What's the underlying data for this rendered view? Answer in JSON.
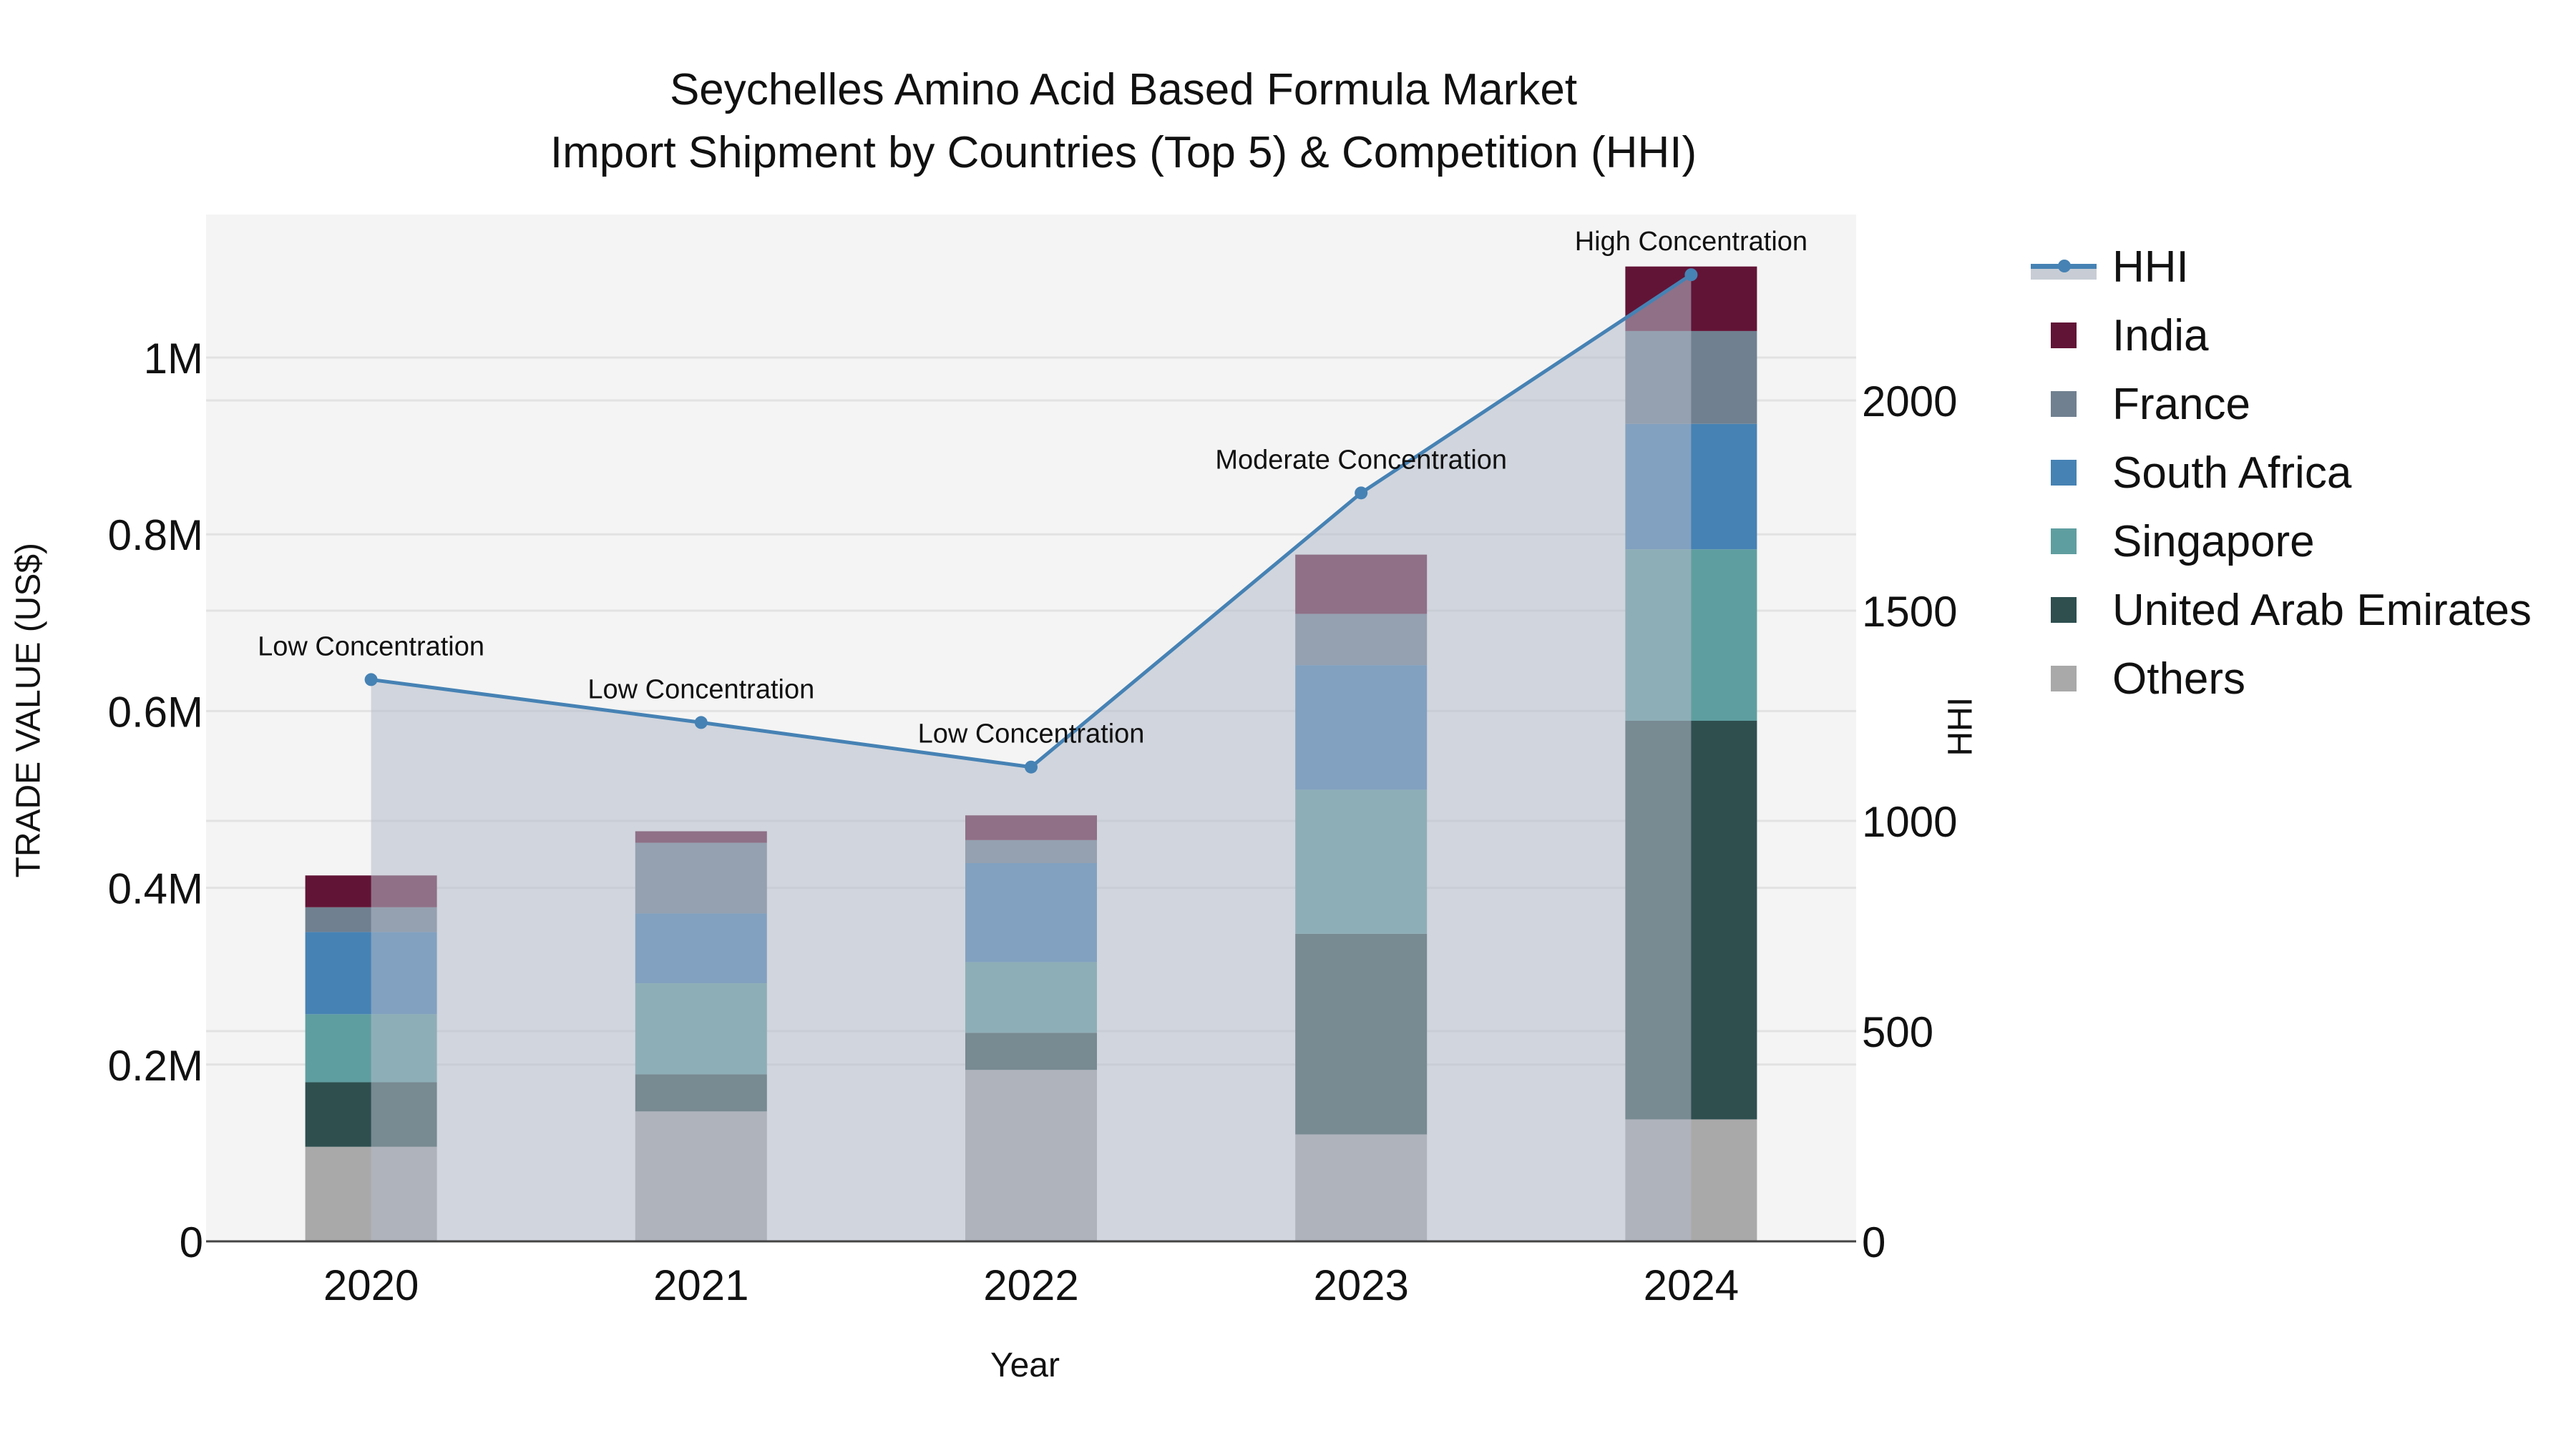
{
  "title": {
    "line1": "Seychelles Amino Acid Based Formula Market",
    "line2": "Import Shipment by Countries (Top 5) & Competition (HHI)"
  },
  "axes": {
    "x_title": "Year",
    "y_left_title": "TRADE VALUE (US$)",
    "y_right_title": "HHI"
  },
  "legend": {
    "items": [
      {
        "label": "HHI",
        "type": "line",
        "color": "#4682b4"
      },
      {
        "label": "India",
        "type": "bar",
        "color": "#621436"
      },
      {
        "label": "France",
        "type": "bar",
        "color": "#708090"
      },
      {
        "label": "South Africa",
        "type": "bar",
        "color": "#4682b4"
      },
      {
        "label": "Singapore",
        "type": "bar",
        "color": "#5f9ea0"
      },
      {
        "label": "United Arab Emirates",
        "type": "bar",
        "color": "#2f4f4f"
      },
      {
        "label": "Others",
        "type": "bar",
        "color": "#a9a9a9"
      }
    ]
  },
  "colors": {
    "plot_bg": "#f4f4f4",
    "hhi_fill": "#c8cdd5",
    "hhi_line": "#4682b4",
    "grid": "#e2e2e2"
  },
  "chart_data": {
    "type": "bar",
    "subtype": "stacked bar with line overlay (secondary axis)",
    "title": "Seychelles Amino Acid Based Formula Market — Import Shipment by Countries (Top 5) & Competition (HHI)",
    "xlabel": "Year",
    "ylabel": "TRADE VALUE (US$)",
    "y2label": "HHI",
    "categories": [
      "2020",
      "2021",
      "2022",
      "2023",
      "2024"
    ],
    "ylim": [
      0,
      1110000
    ],
    "y2lim": [
      0,
      2320
    ],
    "y_ticks": [
      {
        "value": 0,
        "label": "0"
      },
      {
        "value": 200000,
        "label": "0.2M"
      },
      {
        "value": 400000,
        "label": "0.4M"
      },
      {
        "value": 600000,
        "label": "0.6M"
      },
      {
        "value": 800000,
        "label": "0.8M"
      },
      {
        "value": 1000000,
        "label": "1M"
      }
    ],
    "y2_ticks": [
      {
        "value": 0,
        "label": "0"
      },
      {
        "value": 500,
        "label": "500"
      },
      {
        "value": 1000,
        "label": "1000"
      },
      {
        "value": 1500,
        "label": "1500"
      },
      {
        "value": 2000,
        "label": "2000"
      }
    ],
    "grid": true,
    "legend_position": "right",
    "series": [
      {
        "name": "Others",
        "color": "#a9a9a9",
        "values": [
          107000,
          147000,
          194000,
          121000,
          138000
        ]
      },
      {
        "name": "United Arab Emirates",
        "color": "#2f4f4f",
        "values": [
          73000,
          42000,
          42000,
          227000,
          451000
        ]
      },
      {
        "name": "Singapore",
        "color": "#5f9ea0",
        "values": [
          77000,
          103000,
          80000,
          163000,
          194000
        ]
      },
      {
        "name": "South Africa",
        "color": "#4682b4",
        "values": [
          93000,
          79000,
          112000,
          141000,
          142000
        ]
      },
      {
        "name": "France",
        "color": "#708090",
        "values": [
          28000,
          80000,
          26000,
          58000,
          105000
        ]
      },
      {
        "name": "India",
        "color": "#621436",
        "values": [
          36000,
          13000,
          28000,
          67000,
          73000
        ]
      }
    ],
    "line_series": {
      "name": "HHI",
      "axis": "right",
      "color": "#4682b4",
      "fill": "tozeroy",
      "values": [
        1336,
        1234,
        1128,
        1780,
        2299
      ],
      "annotations": [
        "Low Concentration",
        "Low Concentration",
        "Low Concentration",
        "Moderate Concentration",
        "High Concentration"
      ]
    }
  }
}
